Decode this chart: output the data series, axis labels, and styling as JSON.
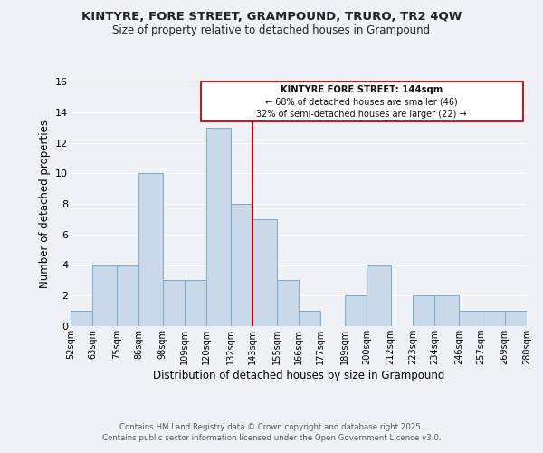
{
  "title": "KINTYRE, FORE STREET, GRAMPOUND, TRURO, TR2 4QW",
  "subtitle": "Size of property relative to detached houses in Grampound",
  "xlabel": "Distribution of detached houses by size in Grampound",
  "ylabel": "Number of detached properties",
  "bar_color": "#c9d9ea",
  "bar_edge_color": "#7aaac8",
  "background_color": "#eef2f7",
  "grid_color": "#ffffff",
  "vline_x": 143,
  "vline_color": "#cc0000",
  "annotation_title": "KINTYRE FORE STREET: 144sqm",
  "annotation_line1": "← 68% of detached houses are smaller (46)",
  "annotation_line2": "32% of semi-detached houses are larger (22) →",
  "bins": [
    52,
    63,
    75,
    86,
    98,
    109,
    120,
    132,
    143,
    155,
    166,
    177,
    189,
    200,
    212,
    223,
    234,
    246,
    257,
    269,
    280
  ],
  "counts": [
    1,
    4,
    4,
    10,
    3,
    3,
    13,
    8,
    7,
    3,
    1,
    0,
    2,
    4,
    0,
    2,
    2,
    1,
    1,
    1
  ],
  "tick_labels": [
    "52sqm",
    "63sqm",
    "75sqm",
    "86sqm",
    "98sqm",
    "109sqm",
    "120sqm",
    "132sqm",
    "143sqm",
    "155sqm",
    "166sqm",
    "177sqm",
    "189sqm",
    "200sqm",
    "212sqm",
    "223sqm",
    "234sqm",
    "246sqm",
    "257sqm",
    "269sqm",
    "280sqm"
  ],
  "ylim": [
    0,
    16
  ],
  "yticks": [
    0,
    2,
    4,
    6,
    8,
    10,
    12,
    14,
    16
  ],
  "footer1": "Contains HM Land Registry data © Crown copyright and database right 2025.",
  "footer2": "Contains public sector information licensed under the Open Government Licence v3.0."
}
